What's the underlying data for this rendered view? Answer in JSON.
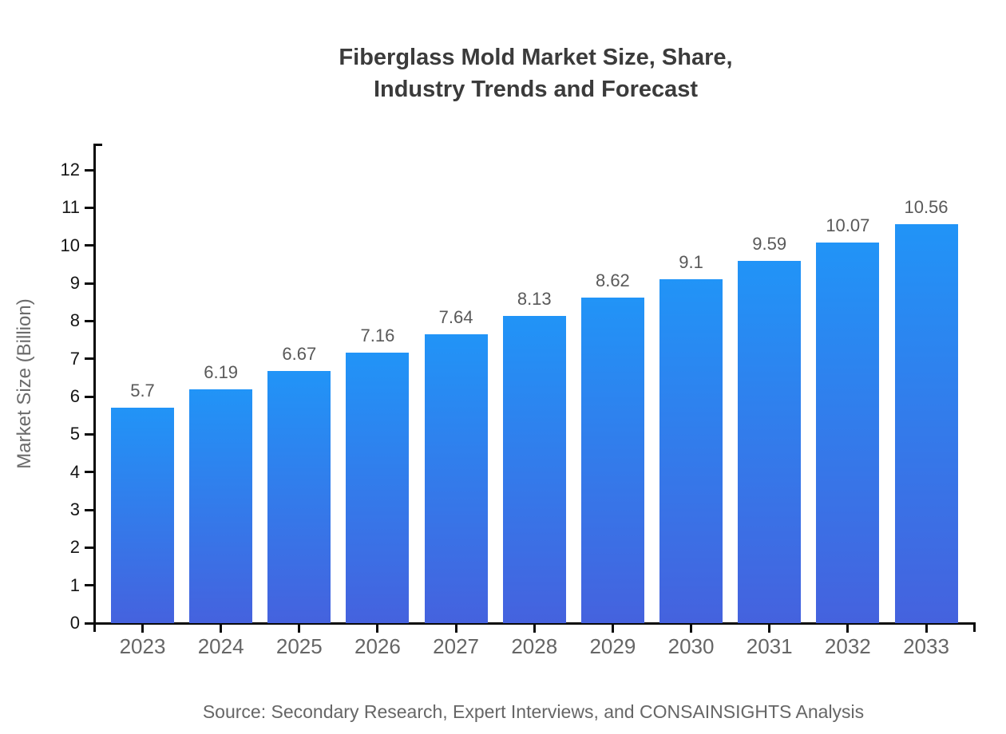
{
  "title": {
    "line1": "Fiberglass Mold Market Size, Share,",
    "line2": "Industry Trends and Forecast"
  },
  "source_note": "Source: Secondary Research, Expert Interviews, and CONSAINSIGHTS Analysis",
  "chart_data": {
    "type": "bar",
    "title": "Fiberglass Mold Market Size, Share, Industry Trends and Forecast",
    "xlabel": "",
    "ylabel": "Market Size (Billion)",
    "categories": [
      "2023",
      "2024",
      "2025",
      "2026",
      "2027",
      "2028",
      "2029",
      "2030",
      "2031",
      "2032",
      "2033"
    ],
    "values": [
      5.7,
      6.19,
      6.67,
      7.16,
      7.64,
      8.13,
      8.62,
      9.1,
      9.59,
      10.07,
      10.56
    ],
    "value_labels": [
      "5.7",
      "6.19",
      "6.67",
      "7.16",
      "7.64",
      "8.13",
      "8.62",
      "9.1",
      "9.59",
      "10.07",
      "10.56"
    ],
    "ylim": [
      0,
      12
    ],
    "yticks": [
      0,
      1,
      2,
      3,
      4,
      5,
      6,
      7,
      8,
      9,
      10,
      11,
      12
    ],
    "grid": false,
    "legend": false,
    "colors": {
      "bar_gradient_top": "#2194f7",
      "bar_gradient_bottom": "#4562de",
      "axis": "#0a0a0a",
      "value_label": "#595959",
      "tick_label": "#141414",
      "category_label": "#666666",
      "title": "#3b3b3b",
      "source": "#666666"
    }
  }
}
